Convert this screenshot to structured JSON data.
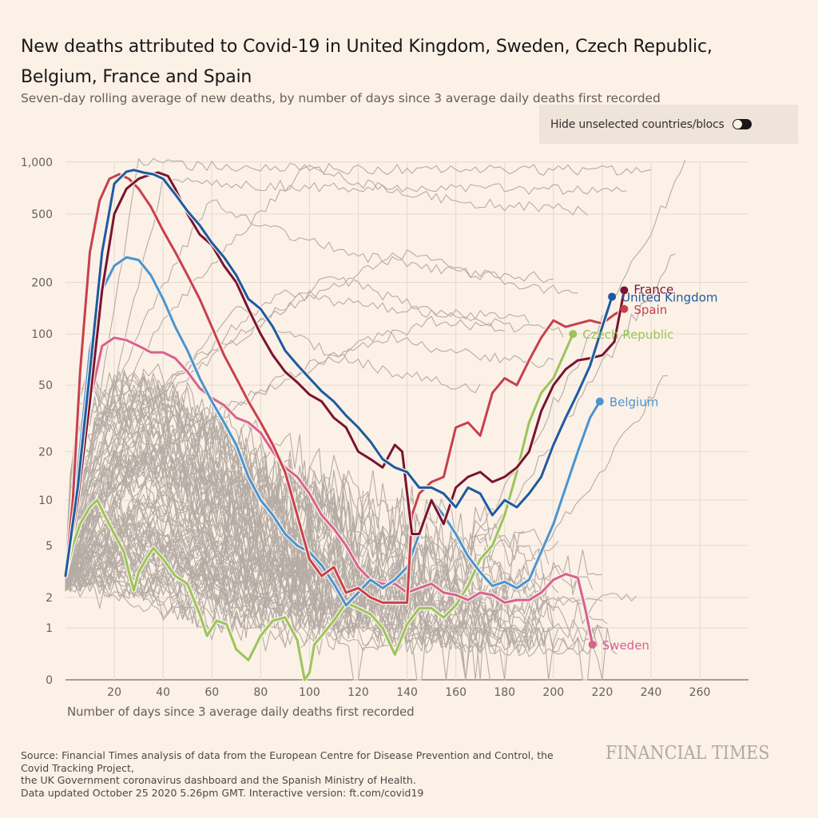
{
  "header": {
    "title": "New deaths attributed to Covid-19 in United Kingdom, Sweden, Czech Republic, Belgium, France and Spain",
    "subtitle": "Seven-day rolling average of new deaths, by number of days since 3 average daily deaths first recorded"
  },
  "toggle": {
    "label": "Hide unselected countries/blocs",
    "state": "off"
  },
  "footer": {
    "source_lines": [
      "Source: Financial Times analysis of data from the European Centre for Disease Prevention and Control, the",
      "Covid Tracking Project,",
      "the UK Government coronavirus dashboard and the Spanish Ministry of Health.",
      "Data updated October 25 2020 5.26pm GMT. Interactive version: ft.com/covid19"
    ],
    "brand": "FINANCIAL TIMES"
  },
  "chart_data": {
    "type": "line",
    "title": "New deaths attributed to Covid-19 in United Kingdom, Sweden, Czech Republic, Belgium, France and Spain",
    "subtitle": "Seven-day rolling average of new deaths, by number of days since 3 average daily deaths first recorded",
    "xlabel": "Number of days since 3 average daily deaths first recorded",
    "ylabel": "",
    "y_scale": "log",
    "xlim": [
      0,
      280
    ],
    "ylim": [
      0,
      1000
    ],
    "x_ticks": [
      20,
      40,
      60,
      80,
      100,
      120,
      140,
      160,
      180,
      200,
      220,
      240,
      260
    ],
    "x_tick_labels": [
      "20",
      "40",
      "60",
      "80",
      "100",
      "120",
      "140",
      "160",
      "180",
      "200",
      "220",
      "240",
      "260"
    ],
    "y_ticks": [
      0,
      1,
      2,
      5,
      10,
      20,
      50,
      100,
      200,
      500,
      1000
    ],
    "y_tick_labels": [
      "0",
      "1",
      "2",
      "5",
      "10",
      "20",
      "50",
      "100",
      "200",
      "500",
      "1,000"
    ],
    "grid": true,
    "legend": "direct-labels at line ends",
    "highlight_series": [
      {
        "name": "United Kingdom",
        "color": "#1f5aa0",
        "x": [
          0,
          5,
          10,
          15,
          20,
          25,
          28,
          32,
          36,
          40,
          45,
          50,
          55,
          60,
          65,
          70,
          75,
          80,
          85,
          90,
          95,
          100,
          105,
          110,
          115,
          120,
          125,
          130,
          135,
          140,
          145,
          150,
          155,
          160,
          165,
          170,
          175,
          180,
          185,
          190,
          195,
          200,
          205,
          210,
          215,
          220,
          224
        ],
        "y": [
          3,
          12,
          60,
          300,
          750,
          880,
          900,
          870,
          850,
          800,
          650,
          520,
          430,
          340,
          280,
          220,
          160,
          140,
          110,
          80,
          66,
          55,
          46,
          40,
          33,
          28,
          23,
          18,
          16,
          15,
          12,
          12,
          11,
          9,
          12,
          11,
          8,
          10,
          9,
          11,
          14,
          22,
          32,
          45,
          65,
          110,
          165
        ]
      },
      {
        "name": "France",
        "color": "#7a1430",
        "x": [
          0,
          5,
          10,
          15,
          20,
          25,
          30,
          35,
          38,
          42,
          45,
          50,
          55,
          60,
          65,
          70,
          75,
          80,
          85,
          90,
          95,
          100,
          105,
          110,
          115,
          120,
          125,
          130,
          135,
          138,
          142,
          145,
          150,
          155,
          160,
          165,
          170,
          175,
          180,
          185,
          190,
          195,
          200,
          205,
          210,
          215,
          220,
          225,
          229
        ],
        "y": [
          3,
          10,
          40,
          180,
          500,
          700,
          800,
          850,
          870,
          830,
          700,
          500,
          380,
          330,
          250,
          200,
          140,
          100,
          75,
          60,
          52,
          44,
          40,
          32,
          28,
          20,
          18,
          16,
          22,
          20,
          6,
          6,
          10,
          7,
          12,
          14,
          15,
          13,
          14,
          16,
          20,
          35,
          50,
          62,
          70,
          72,
          75,
          90,
          180
        ]
      },
      {
        "name": "Spain",
        "color": "#c8404c",
        "x": [
          0,
          3,
          6,
          10,
          14,
          18,
          22,
          26,
          30,
          35,
          40,
          45,
          50,
          55,
          60,
          65,
          70,
          75,
          80,
          85,
          90,
          95,
          100,
          105,
          110,
          115,
          120,
          125,
          130,
          135,
          140,
          142,
          145,
          150,
          155,
          160,
          165,
          170,
          175,
          180,
          185,
          190,
          195,
          200,
          205,
          210,
          215,
          220,
          225,
          229
        ],
        "y": [
          3,
          10,
          60,
          300,
          600,
          800,
          850,
          800,
          700,
          550,
          400,
          300,
          220,
          160,
          110,
          75,
          55,
          40,
          30,
          22,
          15,
          8,
          4,
          3,
          3.5,
          2.2,
          2.4,
          2,
          1.8,
          1.8,
          1.8,
          8,
          11,
          13,
          14,
          28,
          30,
          25,
          45,
          55,
          50,
          70,
          95,
          120,
          110,
          115,
          120,
          115,
          130,
          140
        ]
      },
      {
        "name": "Belgium",
        "color": "#4a94d0",
        "x": [
          0,
          5,
          10,
          15,
          20,
          25,
          30,
          35,
          40,
          45,
          50,
          55,
          60,
          65,
          70,
          75,
          80,
          85,
          90,
          95,
          100,
          105,
          110,
          115,
          120,
          125,
          130,
          135,
          140,
          145,
          150,
          155,
          160,
          165,
          170,
          175,
          180,
          185,
          190,
          195,
          200,
          205,
          210,
          215,
          219
        ],
        "y": [
          3,
          15,
          80,
          180,
          250,
          280,
          270,
          220,
          160,
          110,
          80,
          55,
          40,
          30,
          22,
          14,
          10,
          8,
          6,
          5,
          4.5,
          3.6,
          2.6,
          1.7,
          2.2,
          2.8,
          2.4,
          2.8,
          3.5,
          6,
          10,
          8,
          6,
          4.2,
          3.2,
          2.5,
          2.7,
          2.4,
          2.8,
          4.5,
          7,
          12,
          20,
          32,
          40
        ]
      },
      {
        "name": "Sweden",
        "color": "#d7628e",
        "x": [
          0,
          5,
          10,
          15,
          20,
          25,
          30,
          35,
          40,
          45,
          50,
          55,
          60,
          65,
          70,
          75,
          80,
          85,
          90,
          95,
          100,
          105,
          110,
          115,
          120,
          125,
          130,
          135,
          140,
          145,
          150,
          155,
          160,
          165,
          170,
          175,
          180,
          185,
          190,
          195,
          200,
          205,
          210,
          213,
          216
        ],
        "y": [
          3,
          10,
          40,
          85,
          95,
          92,
          85,
          78,
          78,
          72,
          60,
          48,
          42,
          38,
          32,
          30,
          26,
          20,
          16,
          14,
          11,
          8,
          6.5,
          5,
          3.5,
          2.8,
          2.6,
          2.6,
          2.2,
          2.4,
          2.6,
          2.2,
          2.1,
          1.9,
          2.2,
          2.1,
          1.8,
          1.9,
          1.9,
          2.2,
          2.8,
          3.1,
          2.9,
          1.6,
          0.6
        ]
      },
      {
        "name": "Czech Republic",
        "color": "#9bc45a",
        "x": [
          0,
          3,
          6,
          10,
          13,
          16,
          20,
          24,
          26,
          28,
          30,
          33,
          36,
          40,
          45,
          50,
          55,
          58,
          62,
          66,
          70,
          75,
          80,
          85,
          90,
          95,
          98,
          100,
          102,
          105,
          110,
          115,
          120,
          125,
          130,
          135,
          140,
          145,
          150,
          155,
          160,
          165,
          170,
          175,
          180,
          185,
          190,
          195,
          200,
          205,
          208
        ],
        "y": [
          3,
          5,
          7,
          9,
          10,
          8,
          6,
          4.5,
          3.2,
          2.3,
          3.2,
          4,
          4.8,
          4,
          3,
          2.6,
          1.4,
          0.8,
          1.2,
          1.1,
          0.5,
          0.3,
          0.8,
          1.2,
          1.3,
          0.7,
          0.0,
          0.1,
          0.6,
          0.8,
          1.2,
          1.8,
          1.6,
          1.4,
          1.0,
          0.4,
          1.1,
          1.6,
          1.6,
          1.3,
          1.7,
          2.5,
          4,
          5,
          8,
          15,
          30,
          45,
          55,
          80,
          100
        ]
      }
    ],
    "background_series_note": "~100 unlabelled grey lines for other countries/blocs"
  }
}
